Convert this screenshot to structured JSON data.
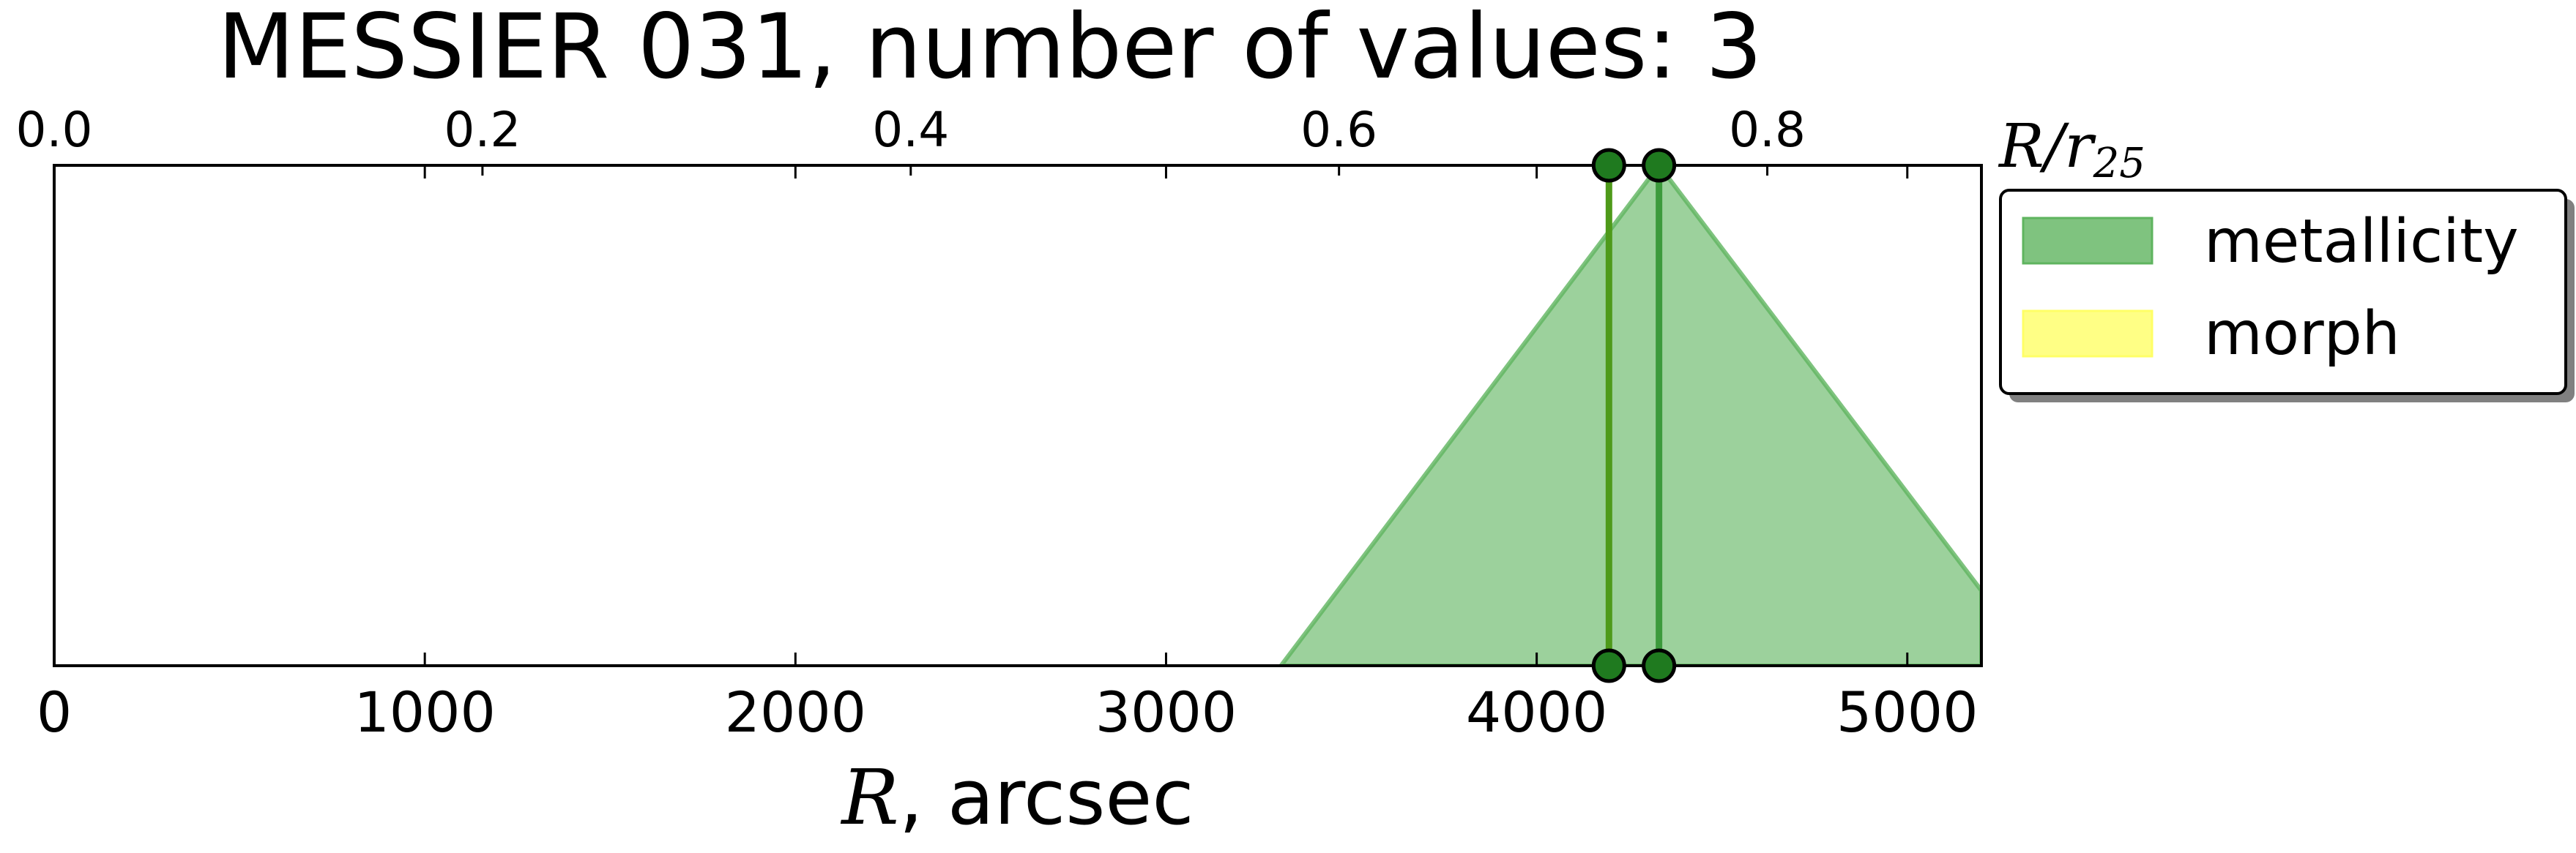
{
  "chart_data": {
    "type": "area",
    "title": "MESSIER 031, number of values: 3",
    "xlabel_math": "R",
    "xlabel_suffix": ", arcsec",
    "top_xlabel_main": "R/r",
    "top_xlabel_sub": "25",
    "xlim": [
      0,
      5200
    ],
    "xticks": [
      0,
      1000,
      2000,
      3000,
      4000,
      5000
    ],
    "top_xlim": [
      0,
      0.9
    ],
    "top_xticks": [
      "0.0",
      "0.2",
      "0.4",
      "0.6",
      "0.8"
    ],
    "top_xtick_values": [
      0.0,
      0.2,
      0.4,
      0.6,
      0.8
    ],
    "ylim": [
      0,
      1
    ],
    "grid": false,
    "legend_position": "upper-right-outside",
    "series": [
      {
        "name": "metallicity",
        "color": "#5fb45f",
        "fill_x": [
          3310,
          4330,
          5200
        ],
        "fill_y": [
          0,
          1,
          0.15
        ],
        "lines_x": [
          4195,
          4330
        ],
        "line_colors": [
          "#4e9a1a",
          "#3c9a3c"
        ]
      },
      {
        "name": "morph",
        "color": "#ffff66",
        "fill_x": [],
        "fill_y": [],
        "lines_x": []
      }
    ],
    "marker_color": "#1f7a1f"
  }
}
